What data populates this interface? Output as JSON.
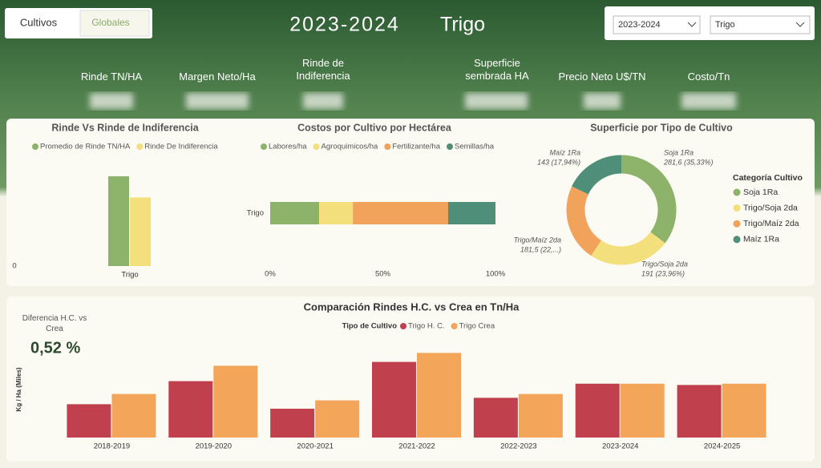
{
  "header": {
    "buttons": [
      "Cultivos",
      "Globales"
    ],
    "title": [
      "2023-2024",
      "Trigo"
    ],
    "filters": [
      "2023-2024",
      "Trigo"
    ]
  },
  "kpis": {
    "labels": [
      "Rinde TN/HA",
      "Margen Neto/Ha",
      "Rinde de Indiferencia",
      "Superficie sembrada HA",
      "Precio Neto U$/TN",
      "Costo/Tn"
    ]
  },
  "card": {
    "label": "Diferencia H.C. vs Crea",
    "value": "0,52 %"
  },
  "chart_data": [
    {
      "type": "bar",
      "title": "Rinde Vs Rinde de Indiferencia",
      "categories": [
        "Trigo"
      ],
      "series": [
        {
          "name": "Promedio de Rinde TN/HA",
          "color": "#8db36a",
          "values": [
            4.15
          ]
        },
        {
          "name": "Rinde De Indiferencia",
          "color": "#f3df7c",
          "values": [
            3.17
          ]
        }
      ],
      "ylim": [
        0,
        5
      ],
      "yticks": [
        0
      ]
    },
    {
      "type": "bar",
      "orientation": "horizontal",
      "stacked": true,
      "title": "Costos por Cultivo por Hectárea",
      "categories": [
        "Trigo"
      ],
      "series": [
        {
          "name": "Labores/ha",
          "color": "#8db36a",
          "values": [
            21.7
          ]
        },
        {
          "name": "Agroquimicos/ha",
          "color": "#f3df7c",
          "values": [
            15
          ]
        },
        {
          "name": "Fertilizante/ha",
          "color": "#f2a35b",
          "values": [
            42.3
          ]
        },
        {
          "name": "Semillas/ha",
          "color": "#4f8f7a",
          "values": [
            21
          ]
        }
      ],
      "xlim": [
        0,
        100
      ],
      "xticks": [
        {
          "value": 0,
          "label": "0%"
        },
        {
          "value": 50,
          "label": "50%"
        },
        {
          "value": 100,
          "label": "100%"
        }
      ]
    },
    {
      "type": "donut",
      "title": "Superficie por Tipo de Cultivo",
      "legend_title": "Categoría Cultivo",
      "categories": [
        "Soja 1Ra",
        "Trigo/Soja 2da",
        "Trigo/Maíz 2da",
        "Maíz 1Ra"
      ],
      "values": [
        281.6,
        191,
        181.5,
        143
      ],
      "value_labels": [
        "281,6 (35,33%)",
        "191 (23,96%)",
        "181,5 (22,...)",
        "143 (17,94%)"
      ],
      "colors": [
        "#8db36a",
        "#f3df7c",
        "#f2a35b",
        "#4f8f7a"
      ]
    },
    {
      "type": "bar",
      "title": "Comparación Rindes H.C. vs Crea en Tn/Ha",
      "legend_title": "Tipo de Cultivo",
      "ylabel": "Kg / Ha (Miles)",
      "categories": [
        "2018-2019",
        "2019-2020",
        "2020-2021",
        "2021-2022",
        "2022-2023",
        "2023-2024",
        "2024-2025"
      ],
      "series": [
        {
          "name": "Trigo H. C.",
          "color": "#c0414d",
          "values": [
            2.6,
            4.4,
            2.25,
            5.9,
            3.1,
            4.2,
            4.1
          ]
        },
        {
          "name": "Trigo Crea",
          "color": "#f3a55a",
          "values": [
            3.4,
            5.6,
            2.9,
            6.6,
            3.4,
            4.2,
            4.2
          ]
        }
      ],
      "ylim": [
        0,
        7.5
      ]
    }
  ]
}
